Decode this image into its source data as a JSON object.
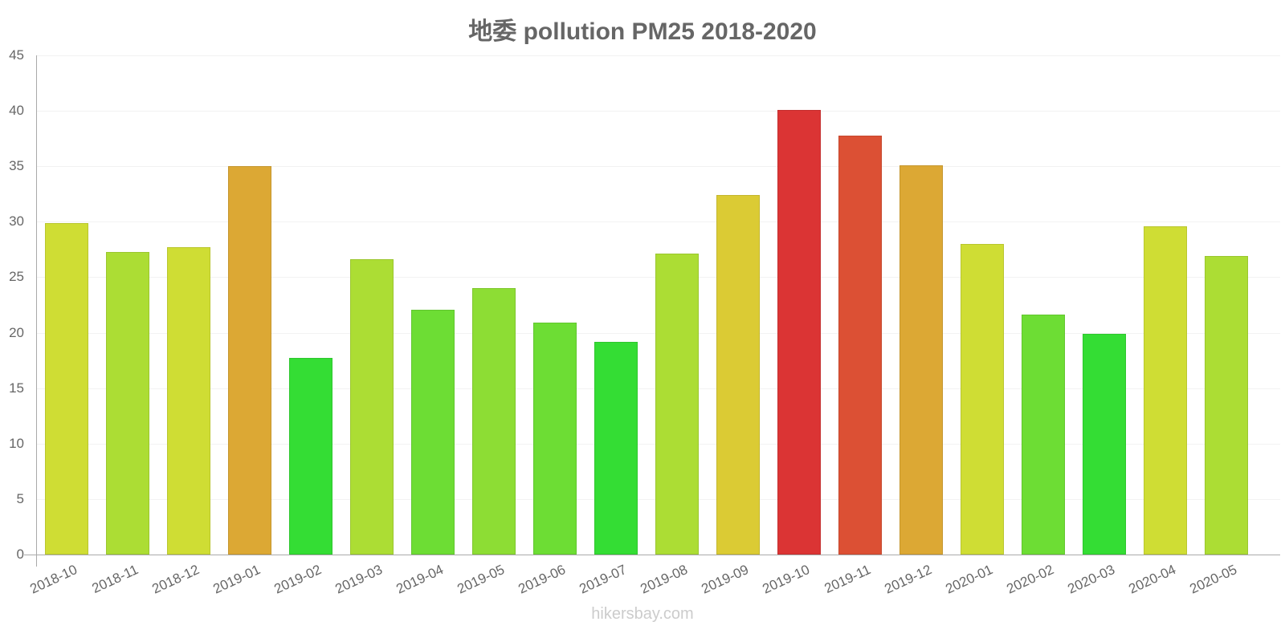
{
  "chart_data": {
    "type": "bar",
    "title": "地委 pollution PM25 2018-2020",
    "xlabel": "",
    "ylabel": "",
    "ylim": [
      0,
      45
    ],
    "yticks": [
      0,
      5,
      10,
      15,
      20,
      25,
      30,
      35,
      40,
      45
    ],
    "grid": true,
    "legend": null,
    "categories": [
      "2018-10",
      "2018-11",
      "2018-12",
      "2019-01",
      "2019-02",
      "2019-03",
      "2019-04",
      "2019-05",
      "2019-06",
      "2019-07",
      "2019-08",
      "2019-09",
      "2019-10",
      "2019-11",
      "2019-12",
      "2020-01",
      "2020-02",
      "2020-03",
      "2020-04",
      "2020-05"
    ],
    "values": [
      29.9,
      27.3,
      27.7,
      35.0,
      17.7,
      26.6,
      22.1,
      24.0,
      20.9,
      19.2,
      27.1,
      32.4,
      40.1,
      37.8,
      35.1,
      28.0,
      21.6,
      19.9,
      29.6,
      26.9
    ],
    "colors": [
      "#cfdd34",
      "#acdd34",
      "#cfdd34",
      "#dca834",
      "#34dd34",
      "#acdd34",
      "#6ddd34",
      "#8ddd34",
      "#6ddd34",
      "#34dd34",
      "#acdd34",
      "#dbcb34",
      "#db3434",
      "#dc5034",
      "#dca834",
      "#cfdd34",
      "#6ddd34",
      "#34dd34",
      "#cfdd34",
      "#acdd34"
    ]
  },
  "watermark": "hikersbay.com"
}
